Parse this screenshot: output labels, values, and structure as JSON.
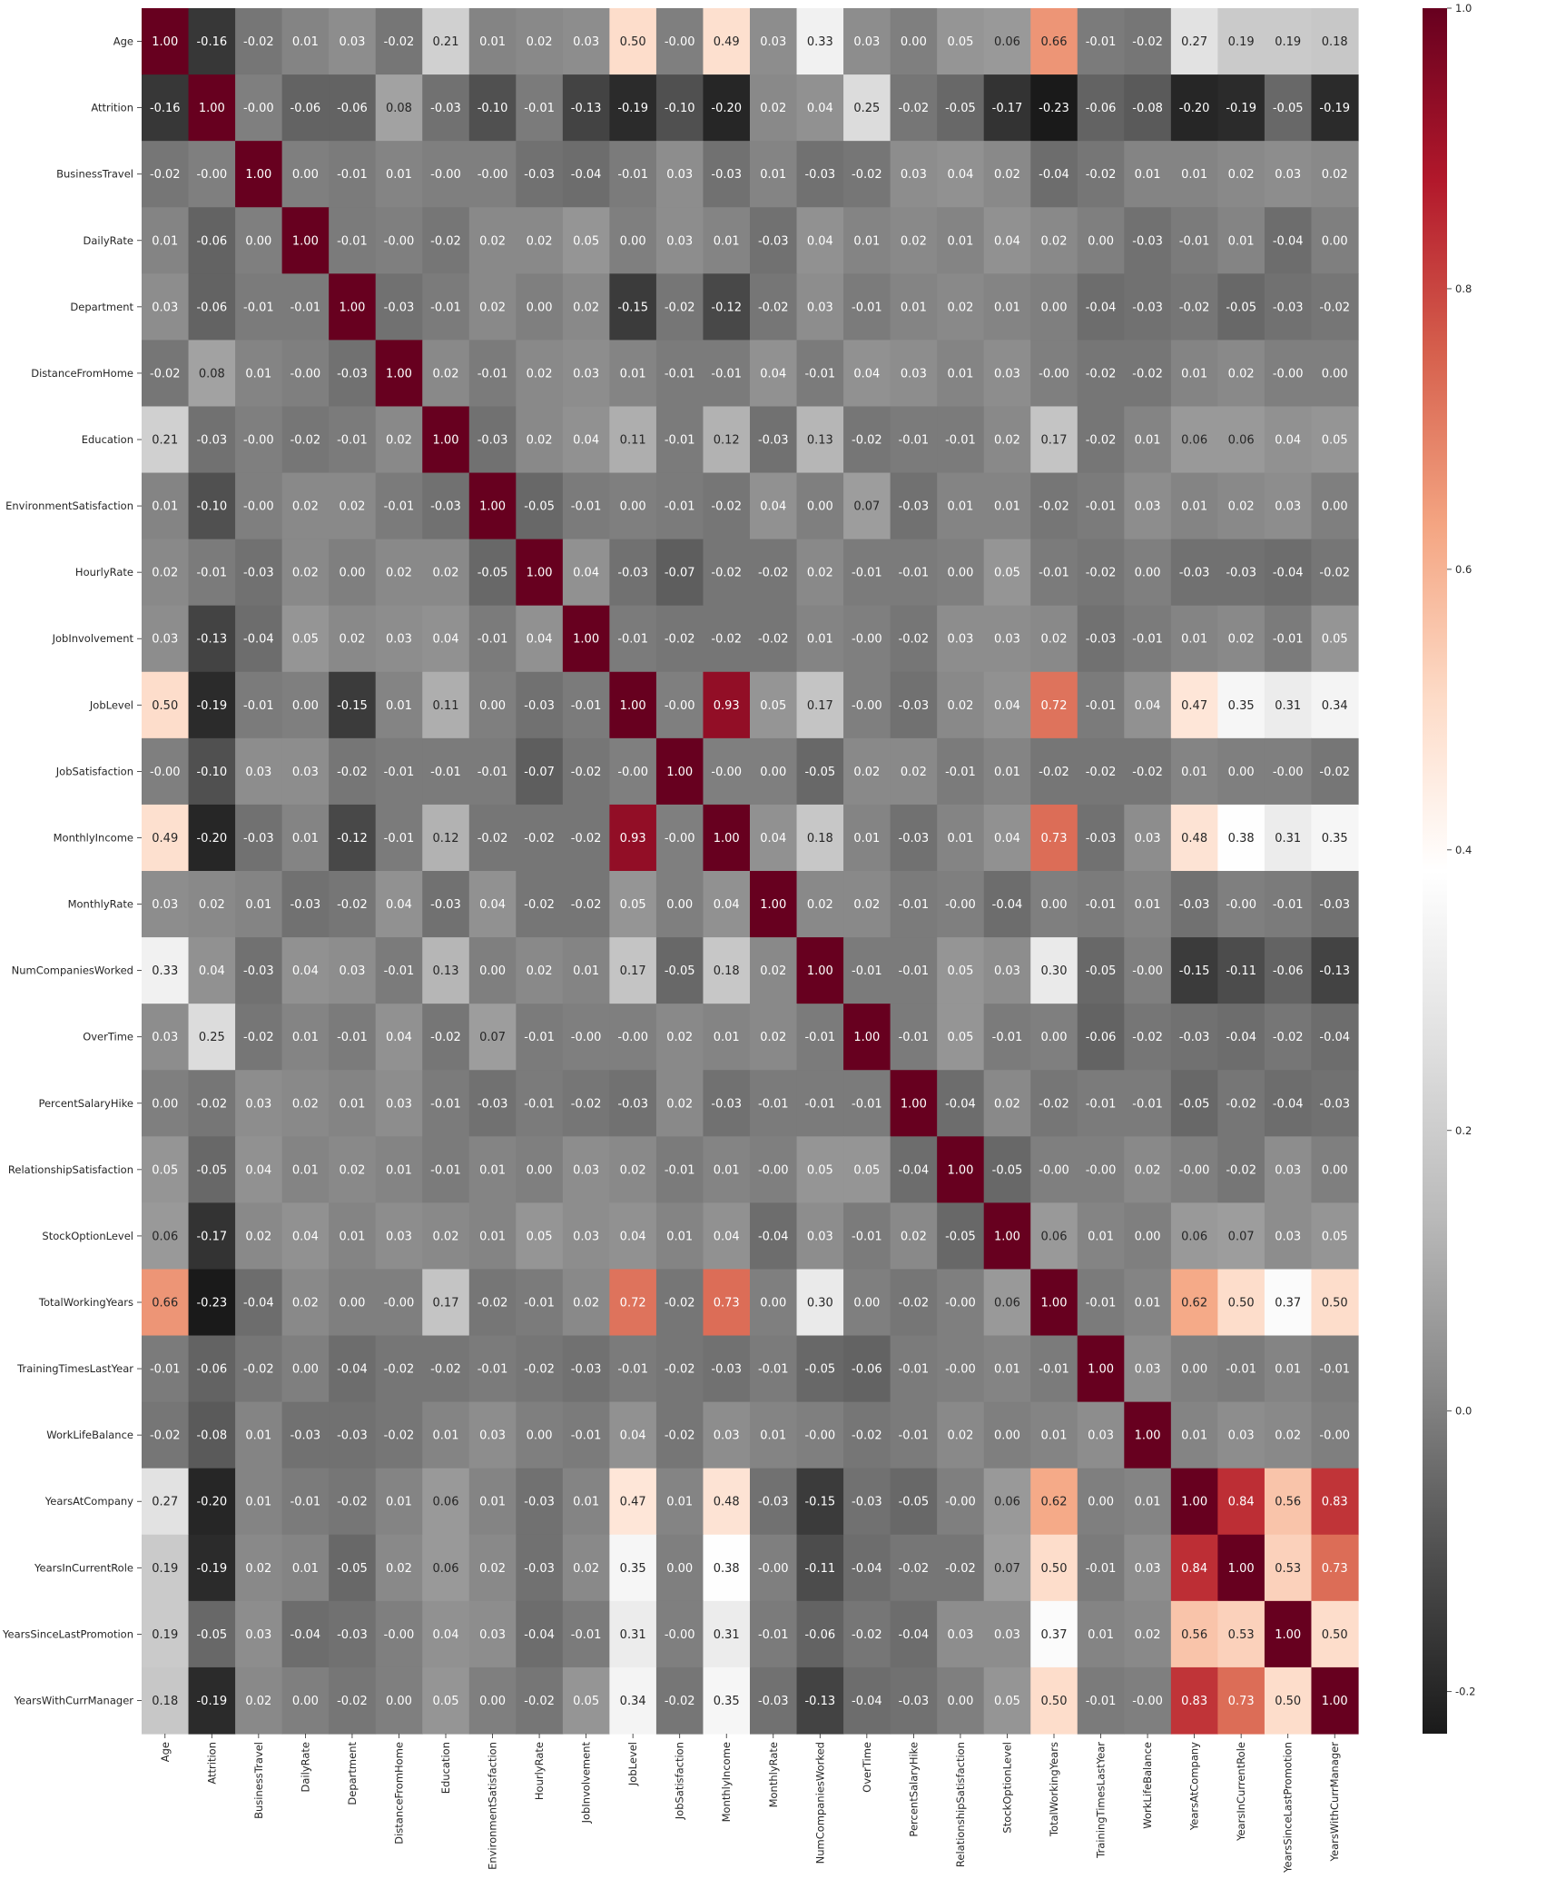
{
  "chart_data": {
    "type": "heatmap",
    "title": "",
    "xlabel": "",
    "ylabel": "",
    "labels": [
      "Age",
      "Attrition",
      "BusinessTravel",
      "DailyRate",
      "Department",
      "DistanceFromHome",
      "Education",
      "EnvironmentSatisfaction",
      "HourlyRate",
      "JobInvolvement",
      "JobLevel",
      "JobSatisfaction",
      "MonthlyIncome",
      "MonthlyRate",
      "NumCompaniesWorked",
      "OverTime",
      "PercentSalaryHike",
      "RelationshipSatisfaction",
      "StockOptionLevel",
      "TotalWorkingYears",
      "TrainingTimesLastYear",
      "WorkLifeBalance",
      "YearsAtCompany",
      "YearsInCurrentRole",
      "YearsSinceLastPromotion",
      "YearsWithCurrManager"
    ],
    "matrix": [
      [
        "1.00",
        "-0.16",
        "-0.02",
        "0.01",
        "0.03",
        "-0.02",
        "0.21",
        "0.01",
        "0.02",
        "0.03",
        "0.50",
        "-0.00",
        "0.49",
        "0.03",
        "0.33",
        "0.03",
        "0.00",
        "0.05",
        "0.06",
        "0.66",
        "-0.01",
        "-0.02",
        "0.27",
        "0.19",
        "0.19",
        "0.18"
      ],
      [
        "-0.16",
        "1.00",
        "-0.00",
        "-0.06",
        "-0.06",
        "0.08",
        "-0.03",
        "-0.10",
        "-0.01",
        "-0.13",
        "-0.19",
        "-0.10",
        "-0.20",
        "0.02",
        "0.04",
        "0.25",
        "-0.02",
        "-0.05",
        "-0.17",
        "-0.23",
        "-0.06",
        "-0.08",
        "-0.20",
        "-0.19",
        "-0.05",
        "-0.19"
      ],
      [
        "-0.02",
        "-0.00",
        "1.00",
        "0.00",
        "-0.01",
        "0.01",
        "-0.00",
        "-0.00",
        "-0.03",
        "-0.04",
        "-0.01",
        "0.03",
        "-0.03",
        "0.01",
        "-0.03",
        "-0.02",
        "0.03",
        "0.04",
        "0.02",
        "-0.04",
        "-0.02",
        "0.01",
        "0.01",
        "0.02",
        "0.03",
        "0.02"
      ],
      [
        "0.01",
        "-0.06",
        "0.00",
        "1.00",
        "-0.01",
        "-0.00",
        "-0.02",
        "0.02",
        "0.02",
        "0.05",
        "0.00",
        "0.03",
        "0.01",
        "-0.03",
        "0.04",
        "0.01",
        "0.02",
        "0.01",
        "0.04",
        "0.02",
        "0.00",
        "-0.03",
        "-0.01",
        "0.01",
        "-0.04",
        "0.00"
      ],
      [
        "0.03",
        "-0.06",
        "-0.01",
        "-0.01",
        "1.00",
        "-0.03",
        "-0.01",
        "0.02",
        "0.00",
        "0.02",
        "-0.15",
        "-0.02",
        "-0.12",
        "-0.02",
        "0.03",
        "-0.01",
        "0.01",
        "0.02",
        "0.01",
        "0.00",
        "-0.04",
        "-0.03",
        "-0.02",
        "-0.05",
        "-0.03",
        "-0.02"
      ],
      [
        "-0.02",
        "0.08",
        "0.01",
        "-0.00",
        "-0.03",
        "1.00",
        "0.02",
        "-0.01",
        "0.02",
        "0.03",
        "0.01",
        "-0.01",
        "-0.01",
        "0.04",
        "-0.01",
        "0.04",
        "0.03",
        "0.01",
        "0.03",
        "-0.00",
        "-0.02",
        "-0.02",
        "0.01",
        "0.02",
        "-0.00",
        "0.00"
      ],
      [
        "0.21",
        "-0.03",
        "-0.00",
        "-0.02",
        "-0.01",
        "0.02",
        "1.00",
        "-0.03",
        "0.02",
        "0.04",
        "0.11",
        "-0.01",
        "0.12",
        "-0.03",
        "0.13",
        "-0.02",
        "-0.01",
        "-0.01",
        "0.02",
        "0.17",
        "-0.02",
        "0.01",
        "0.06",
        "0.06",
        "0.04",
        "0.05"
      ],
      [
        "0.01",
        "-0.10",
        "-0.00",
        "0.02",
        "0.02",
        "-0.01",
        "-0.03",
        "1.00",
        "-0.05",
        "-0.01",
        "0.00",
        "-0.01",
        "-0.02",
        "0.04",
        "0.00",
        "0.07",
        "-0.03",
        "0.01",
        "0.01",
        "-0.02",
        "-0.01",
        "0.03",
        "0.01",
        "0.02",
        "0.03",
        "0.00"
      ],
      [
        "0.02",
        "-0.01",
        "-0.03",
        "0.02",
        "0.00",
        "0.02",
        "0.02",
        "-0.05",
        "1.00",
        "0.04",
        "-0.03",
        "-0.07",
        "-0.02",
        "-0.02",
        "0.02",
        "-0.01",
        "-0.01",
        "0.00",
        "0.05",
        "-0.01",
        "-0.02",
        "0.00",
        "-0.03",
        "-0.03",
        "-0.04",
        "-0.02"
      ],
      [
        "0.03",
        "-0.13",
        "-0.04",
        "0.05",
        "0.02",
        "0.03",
        "0.04",
        "-0.01",
        "0.04",
        "1.00",
        "-0.01",
        "-0.02",
        "-0.02",
        "-0.02",
        "0.01",
        "-0.00",
        "-0.02",
        "0.03",
        "0.03",
        "0.02",
        "-0.03",
        "-0.01",
        "0.01",
        "0.02",
        "-0.01",
        "0.05"
      ],
      [
        "0.50",
        "-0.19",
        "-0.01",
        "0.00",
        "-0.15",
        "0.01",
        "0.11",
        "0.00",
        "-0.03",
        "-0.01",
        "1.00",
        "-0.00",
        "0.93",
        "0.05",
        "0.17",
        "-0.00",
        "-0.03",
        "0.02",
        "0.04",
        "0.72",
        "-0.01",
        "0.04",
        "0.47",
        "0.35",
        "0.31",
        "0.34"
      ],
      [
        "-0.00",
        "-0.10",
        "0.03",
        "0.03",
        "-0.02",
        "-0.01",
        "-0.01",
        "-0.01",
        "-0.07",
        "-0.02",
        "-0.00",
        "1.00",
        "-0.00",
        "0.00",
        "-0.05",
        "0.02",
        "0.02",
        "-0.01",
        "0.01",
        "-0.02",
        "-0.02",
        "-0.02",
        "0.01",
        "0.00",
        "-0.00",
        "-0.02"
      ],
      [
        "0.49",
        "-0.20",
        "-0.03",
        "0.01",
        "-0.12",
        "-0.01",
        "0.12",
        "-0.02",
        "-0.02",
        "-0.02",
        "0.93",
        "-0.00",
        "1.00",
        "0.04",
        "0.18",
        "0.01",
        "-0.03",
        "0.01",
        "0.04",
        "0.73",
        "-0.03",
        "0.03",
        "0.48",
        "0.38",
        "0.31",
        "0.35"
      ],
      [
        "0.03",
        "0.02",
        "0.01",
        "-0.03",
        "-0.02",
        "0.04",
        "-0.03",
        "0.04",
        "-0.02",
        "-0.02",
        "0.05",
        "0.00",
        "0.04",
        "1.00",
        "0.02",
        "0.02",
        "-0.01",
        "-0.00",
        "-0.04",
        "0.00",
        "-0.01",
        "0.01",
        "-0.03",
        "-0.00",
        "-0.01",
        "-0.03"
      ],
      [
        "0.33",
        "0.04",
        "-0.03",
        "0.04",
        "0.03",
        "-0.01",
        "0.13",
        "0.00",
        "0.02",
        "0.01",
        "0.17",
        "-0.05",
        "0.18",
        "0.02",
        "1.00",
        "-0.01",
        "-0.01",
        "0.05",
        "0.03",
        "0.30",
        "-0.05",
        "-0.00",
        "-0.15",
        "-0.11",
        "-0.06",
        "-0.13"
      ],
      [
        "0.03",
        "0.25",
        "-0.02",
        "0.01",
        "-0.01",
        "0.04",
        "-0.02",
        "0.07",
        "-0.01",
        "-0.00",
        "-0.00",
        "0.02",
        "0.01",
        "0.02",
        "-0.01",
        "1.00",
        "-0.01",
        "0.05",
        "-0.01",
        "0.00",
        "-0.06",
        "-0.02",
        "-0.03",
        "-0.04",
        "-0.02",
        "-0.04"
      ],
      [
        "0.00",
        "-0.02",
        "0.03",
        "0.02",
        "0.01",
        "0.03",
        "-0.01",
        "-0.03",
        "-0.01",
        "-0.02",
        "-0.03",
        "0.02",
        "-0.03",
        "-0.01",
        "-0.01",
        "-0.01",
        "1.00",
        "-0.04",
        "0.02",
        "-0.02",
        "-0.01",
        "-0.01",
        "-0.05",
        "-0.02",
        "-0.04",
        "-0.03"
      ],
      [
        "0.05",
        "-0.05",
        "0.04",
        "0.01",
        "0.02",
        "0.01",
        "-0.01",
        "0.01",
        "0.00",
        "0.03",
        "0.02",
        "-0.01",
        "0.01",
        "-0.00",
        "0.05",
        "0.05",
        "-0.04",
        "1.00",
        "-0.05",
        "-0.00",
        "-0.00",
        "0.02",
        "-0.00",
        "-0.02",
        "0.03",
        "0.00"
      ],
      [
        "0.06",
        "-0.17",
        "0.02",
        "0.04",
        "0.01",
        "0.03",
        "0.02",
        "0.01",
        "0.05",
        "0.03",
        "0.04",
        "0.01",
        "0.04",
        "-0.04",
        "0.03",
        "-0.01",
        "0.02",
        "-0.05",
        "1.00",
        "0.06",
        "0.01",
        "0.00",
        "0.06",
        "0.07",
        "0.03",
        "0.05"
      ],
      [
        "0.66",
        "-0.23",
        "-0.04",
        "0.02",
        "0.00",
        "-0.00",
        "0.17",
        "-0.02",
        "-0.01",
        "0.02",
        "0.72",
        "-0.02",
        "0.73",
        "0.00",
        "0.30",
        "0.00",
        "-0.02",
        "-0.00",
        "0.06",
        "1.00",
        "-0.01",
        "0.01",
        "0.62",
        "0.50",
        "0.37",
        "0.50"
      ],
      [
        "-0.01",
        "-0.06",
        "-0.02",
        "0.00",
        "-0.04",
        "-0.02",
        "-0.02",
        "-0.01",
        "-0.02",
        "-0.03",
        "-0.01",
        "-0.02",
        "-0.03",
        "-0.01",
        "-0.05",
        "-0.06",
        "-0.01",
        "-0.00",
        "0.01",
        "-0.01",
        "1.00",
        "0.03",
        "0.00",
        "-0.01",
        "0.01",
        "-0.01"
      ],
      [
        "-0.02",
        "-0.08",
        "0.01",
        "-0.03",
        "-0.03",
        "-0.02",
        "0.01",
        "0.03",
        "0.00",
        "-0.01",
        "0.04",
        "-0.02",
        "0.03",
        "0.01",
        "-0.00",
        "-0.02",
        "-0.01",
        "0.02",
        "0.00",
        "0.01",
        "0.03",
        "1.00",
        "0.01",
        "0.03",
        "0.02",
        "-0.00"
      ],
      [
        "0.27",
        "-0.20",
        "0.01",
        "-0.01",
        "-0.02",
        "0.01",
        "0.06",
        "0.01",
        "-0.03",
        "0.01",
        "0.47",
        "0.01",
        "0.48",
        "-0.03",
        "-0.15",
        "-0.03",
        "-0.05",
        "-0.00",
        "0.06",
        "0.62",
        "0.00",
        "0.01",
        "1.00",
        "0.84",
        "0.56",
        "0.83"
      ],
      [
        "0.19",
        "-0.19",
        "0.02",
        "0.01",
        "-0.05",
        "0.02",
        "0.06",
        "0.02",
        "-0.03",
        "0.02",
        "0.35",
        "0.00",
        "0.38",
        "-0.00",
        "-0.11",
        "-0.04",
        "-0.02",
        "-0.02",
        "0.07",
        "0.50",
        "-0.01",
        "0.03",
        "0.84",
        "1.00",
        "0.53",
        "0.73"
      ],
      [
        "0.19",
        "-0.05",
        "0.03",
        "-0.04",
        "-0.03",
        "-0.00",
        "0.04",
        "0.03",
        "-0.04",
        "-0.01",
        "0.31",
        "-0.00",
        "0.31",
        "-0.01",
        "-0.06",
        "-0.02",
        "-0.04",
        "0.03",
        "0.03",
        "0.37",
        "0.01",
        "0.02",
        "0.56",
        "0.53",
        "1.00",
        "0.50"
      ],
      [
        "0.18",
        "-0.19",
        "0.02",
        "0.00",
        "-0.02",
        "0.00",
        "0.05",
        "0.00",
        "-0.02",
        "0.05",
        "0.34",
        "-0.02",
        "0.35",
        "-0.03",
        "-0.13",
        "-0.04",
        "-0.03",
        "0.00",
        "0.05",
        "0.50",
        "-0.01",
        "-0.00",
        "0.83",
        "0.73",
        "0.50",
        "1.00"
      ]
    ],
    "colormap": "RdGy_r",
    "colorbar": {
      "vmin": -0.23,
      "vmax": 1.0,
      "ticks": [
        "1.0",
        "0.8",
        "0.6",
        "0.4",
        "0.2",
        "0.0",
        "-0.2"
      ],
      "tick_values": [
        1.0,
        0.8,
        0.6,
        0.4,
        0.2,
        0.0,
        -0.2
      ]
    },
    "colors": {
      "low": "#1a1a1a",
      "mid": "#ffffff",
      "high": "#67001f",
      "text_dark": "#262626",
      "text_light": "#ffffff"
    }
  }
}
